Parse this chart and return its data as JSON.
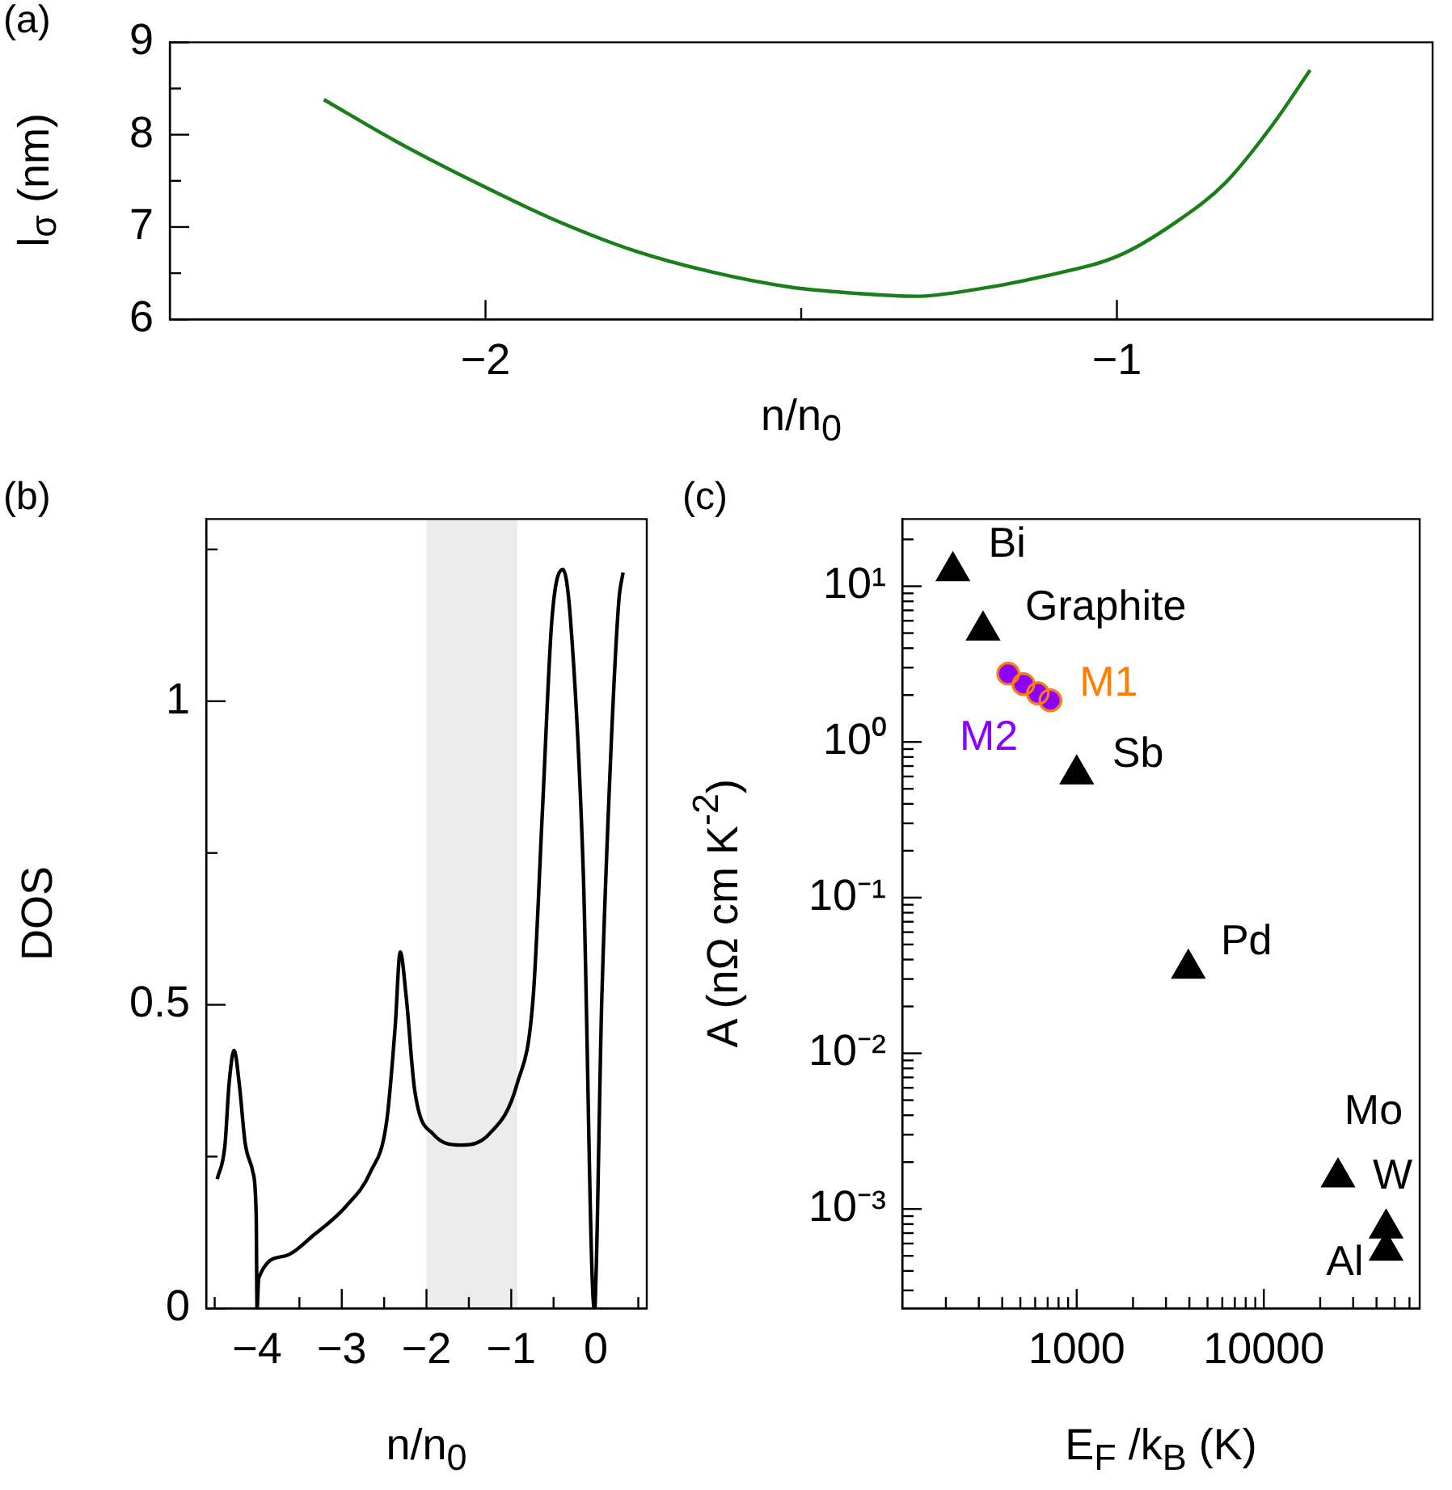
{
  "chart_data": [
    {
      "type": "line",
      "title": "(a)",
      "xlabel": "n/n$_{0}$",
      "ylabel": "l$_{σ}$ (nm)",
      "xlim": [
        -2.5,
        -0.5
      ],
      "ylim": [
        6,
        9
      ],
      "xticks": [
        {
          "value": -2,
          "label": "−2"
        },
        {
          "value": -1.5,
          "label": null
        },
        {
          "value": -1,
          "label": "−1"
        }
      ],
      "yticks": [
        6,
        {
          "value": 6.5,
          "label": null
        },
        7,
        {
          "value": 7.5,
          "label": null
        },
        8,
        {
          "value": 8.5,
          "label": null
        },
        9
      ],
      "legend": false,
      "grid": false,
      "marker": "none",
      "line_style": "solid",
      "series": [
        {
          "color": "#1a7f1a",
          "x": [
            -2.256,
            -2.145,
            -2.015,
            -1.885,
            -1.763,
            -1.64,
            -1.518,
            -1.41,
            -1.318,
            -1.227,
            -1.12,
            -0.997,
            -0.905,
            -0.828,
            -0.752,
            -0.694
          ],
          "values": [
            8.38,
            7.94,
            7.48,
            7.06,
            6.74,
            6.51,
            6.35,
            6.28,
            6.25,
            6.32,
            6.46,
            6.69,
            7.06,
            7.48,
            8.12,
            8.7
          ]
        }
      ]
    },
    {
      "type": "line",
      "title": "(b)",
      "xlabel": "n/n$_{0}$",
      "ylabel": "DOS",
      "xlim": [
        -4.6,
        0.6
      ],
      "ylim": [
        0,
        1.3
      ],
      "xticks": [
        {
          "value": -4.5,
          "label": null
        },
        {
          "value": -4,
          "label": "−4"
        },
        {
          "value": -3.5,
          "label": null
        },
        {
          "value": -3,
          "label": "−3"
        },
        {
          "value": -2.5,
          "label": null
        },
        {
          "value": -2,
          "label": "−2"
        },
        {
          "value": -1.5,
          "label": null
        },
        {
          "value": -1,
          "label": "−1"
        },
        {
          "value": -0.5,
          "label": null
        },
        0,
        {
          "value": 0.5,
          "label": null
        }
      ],
      "yticks": [
        0,
        {
          "value": 0.25,
          "label": null
        },
        0.5,
        {
          "value": 0.75,
          "label": null
        },
        1,
        {
          "value": 1.25,
          "label": null
        }
      ],
      "legend": false,
      "grid": false,
      "marker": "none",
      "line_style": "solid",
      "bands": [
        {
          "axis": "x",
          "from": -2,
          "to": -0.93,
          "color": "#ececec"
        }
      ],
      "series": [
        {
          "color": "#000000",
          "x": [
            -4.47,
            -4.38,
            -4.33,
            -4.27,
            -4.21,
            -4.14,
            -4.05,
            -4.01,
            -4.0,
            -3.98,
            -3.68,
            -3.32,
            -2.95,
            -2.66,
            -2.47,
            -2.37,
            -2.31,
            -2.24,
            -2.14,
            -1.92,
            -1.59,
            -1.26,
            -0.93,
            -0.74,
            -0.63,
            -0.52,
            -0.39,
            -0.3,
            -0.15,
            -0.02,
            0.07,
            0.18,
            0.27,
            0.32
          ],
          "values": [
            0.213,
            0.267,
            0.37,
            0.425,
            0.37,
            0.272,
            0.225,
            0.153,
            0,
            0.05,
            0.086,
            0.122,
            0.168,
            0.225,
            0.308,
            0.463,
            0.587,
            0.514,
            0.36,
            0.287,
            0.269,
            0.287,
            0.37,
            0.514,
            0.824,
            1.134,
            1.217,
            1.134,
            0.721,
            0,
            0.514,
            0.928,
            1.165,
            1.212
          ]
        }
      ]
    },
    {
      "type": "scatter",
      "title": "(c)",
      "xlabel": "E$_{F}$ /k$_{B}$ (K)",
      "ylabel": "A (nΩ cm K$^{-2}$)",
      "log": "xy",
      "xlim": [
        117,
        68000
      ],
      "ylim": [
        0.00023,
        27
      ],
      "xticks": [
        {
          "value": 200,
          "label": null
        },
        {
          "value": 300,
          "label": null
        },
        {
          "value": 400,
          "label": null
        },
        {
          "value": 500,
          "label": null
        },
        {
          "value": 600,
          "label": null
        },
        {
          "value": 700,
          "label": null
        },
        {
          "value": 800,
          "label": null
        },
        {
          "value": 900,
          "label": null
        },
        1000,
        {
          "value": 2000,
          "label": null
        },
        {
          "value": 3000,
          "label": null
        },
        {
          "value": 4000,
          "label": null
        },
        {
          "value": 5000,
          "label": null
        },
        {
          "value": 6000,
          "label": null
        },
        {
          "value": 7000,
          "label": null
        },
        {
          "value": 8000,
          "label": null
        },
        {
          "value": 9000,
          "label": null
        },
        10000,
        {
          "value": 20000,
          "label": null
        },
        {
          "value": 30000,
          "label": null
        },
        {
          "value": 40000,
          "label": null
        },
        {
          "value": 50000,
          "label": null
        },
        {
          "value": 60000,
          "label": null
        }
      ],
      "yticks": [
        {
          "value": 0.0003,
          "label": null
        },
        {
          "value": 0.0004,
          "label": null
        },
        {
          "value": 0.0005,
          "label": null
        },
        {
          "value": 0.0006,
          "label": null
        },
        {
          "value": 0.0007,
          "label": null
        },
        {
          "value": 0.0008,
          "label": null
        },
        {
          "value": 0.0009,
          "label": null
        },
        {
          "value": 0.001,
          "label": "10⁻³"
        },
        {
          "value": 0.002,
          "label": null
        },
        {
          "value": 0.003,
          "label": null
        },
        {
          "value": 0.004,
          "label": null
        },
        {
          "value": 0.005,
          "label": null
        },
        {
          "value": 0.006,
          "label": null
        },
        {
          "value": 0.007,
          "label": null
        },
        {
          "value": 0.008,
          "label": null
        },
        {
          "value": 0.009,
          "label": null
        },
        {
          "value": 0.01,
          "label": "10⁻²"
        },
        {
          "value": 0.02,
          "label": null
        },
        {
          "value": 0.03,
          "label": null
        },
        {
          "value": 0.04,
          "label": null
        },
        {
          "value": 0.05,
          "label": null
        },
        {
          "value": 0.06,
          "label": null
        },
        {
          "value": 0.07,
          "label": null
        },
        {
          "value": 0.08,
          "label": null
        },
        {
          "value": 0.09,
          "label": null
        },
        {
          "value": 0.1,
          "label": "10⁻¹"
        },
        {
          "value": 0.2,
          "label": null
        },
        {
          "value": 0.3,
          "label": null
        },
        {
          "value": 0.4,
          "label": null
        },
        {
          "value": 0.5,
          "label": null
        },
        {
          "value": 0.6,
          "label": null
        },
        {
          "value": 0.7,
          "label": null
        },
        {
          "value": 0.8,
          "label": null
        },
        {
          "value": 0.9,
          "label": null
        },
        {
          "value": 1,
          "label": "10⁰"
        },
        {
          "value": 2,
          "label": null
        },
        {
          "value": 3,
          "label": null
        },
        {
          "value": 4,
          "label": null
        },
        {
          "value": 5,
          "label": null
        },
        {
          "value": 6,
          "label": null
        },
        {
          "value": 7,
          "label": null
        },
        {
          "value": 8,
          "label": null
        },
        {
          "value": 9,
          "label": null
        },
        {
          "value": 10,
          "label": "10¹"
        },
        {
          "value": 20,
          "label": null
        }
      ],
      "legend": false,
      "grid": false,
      "annotations": [
        {
          "text": "Bi",
          "x": 218,
          "y": 12.5
        },
        {
          "text": "Graphite",
          "x": 316,
          "y": 5.2
        },
        {
          "text": "Sb",
          "x": 1000,
          "y": 0.62
        },
        {
          "text": "Pd",
          "x": 3950,
          "y": 0.035
        },
        {
          "text": "Mo",
          "x": 24900,
          "y": 0.0016
        },
        {
          "text": "W",
          "x": 45000,
          "y": 0.00075
        },
        {
          "text": "Al",
          "x": 45000,
          "y": 0.00054
        }
      ],
      "series": [
        {
          "color": "#000000",
          "marker": "triangle",
          "x": [
            218,
            316,
            1000,
            3950,
            24900,
            45000,
            45000
          ],
          "values": [
            12.5,
            5.2,
            0.62,
            0.035,
            0.0016,
            0.00075,
            0.00054
          ]
        },
        {
          "name": "M1",
          "color": "#ff8000",
          "marker": "circle",
          "x": [
            431,
            520,
            620,
            723
          ],
          "values": [
            2.74,
            2.35,
            2.05,
            1.85
          ]
        },
        {
          "name": "M2",
          "color": "#8c00ff",
          "marker": "circle",
          "x": [
            431,
            520,
            620,
            723
          ],
          "values": [
            2.74,
            2.35,
            2.05,
            1.85
          ]
        }
      ]
    }
  ]
}
